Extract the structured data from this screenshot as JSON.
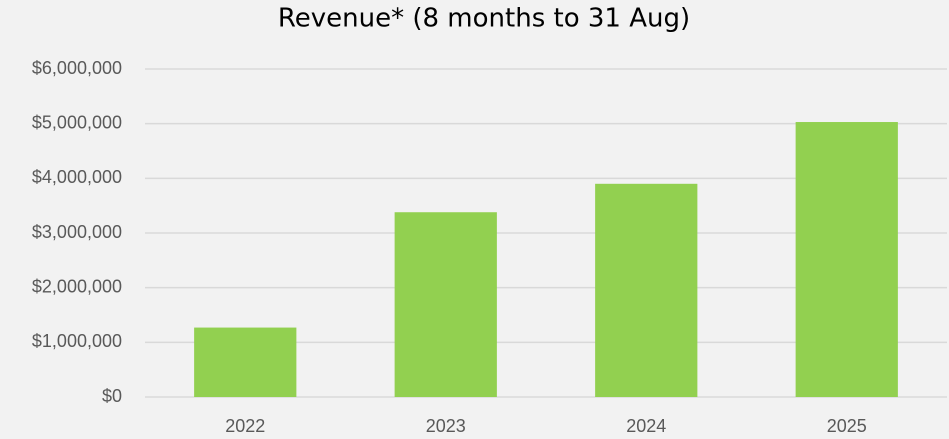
{
  "chart_data": {
    "type": "bar",
    "title": "Revenue* (8 months to 31 Aug)",
    "categories": [
      "2022",
      "2023",
      "2024",
      "2025"
    ],
    "values": [
      1270000,
      3380000,
      3900000,
      5030000
    ],
    "color": "#92d050",
    "ylim": [
      0,
      6000000
    ],
    "yticks": [
      {
        "value": 0,
        "label": "$0"
      },
      {
        "value": 1000000,
        "label": "$1,000,000"
      },
      {
        "value": 2000000,
        "label": "$2,000,000"
      },
      {
        "value": 3000000,
        "label": "$3,000,000"
      },
      {
        "value": 4000000,
        "label": "$4,000,000"
      },
      {
        "value": 5000000,
        "label": "$5,000,000"
      },
      {
        "value": 6000000,
        "label": "$6,000,000"
      }
    ],
    "grid": true
  }
}
